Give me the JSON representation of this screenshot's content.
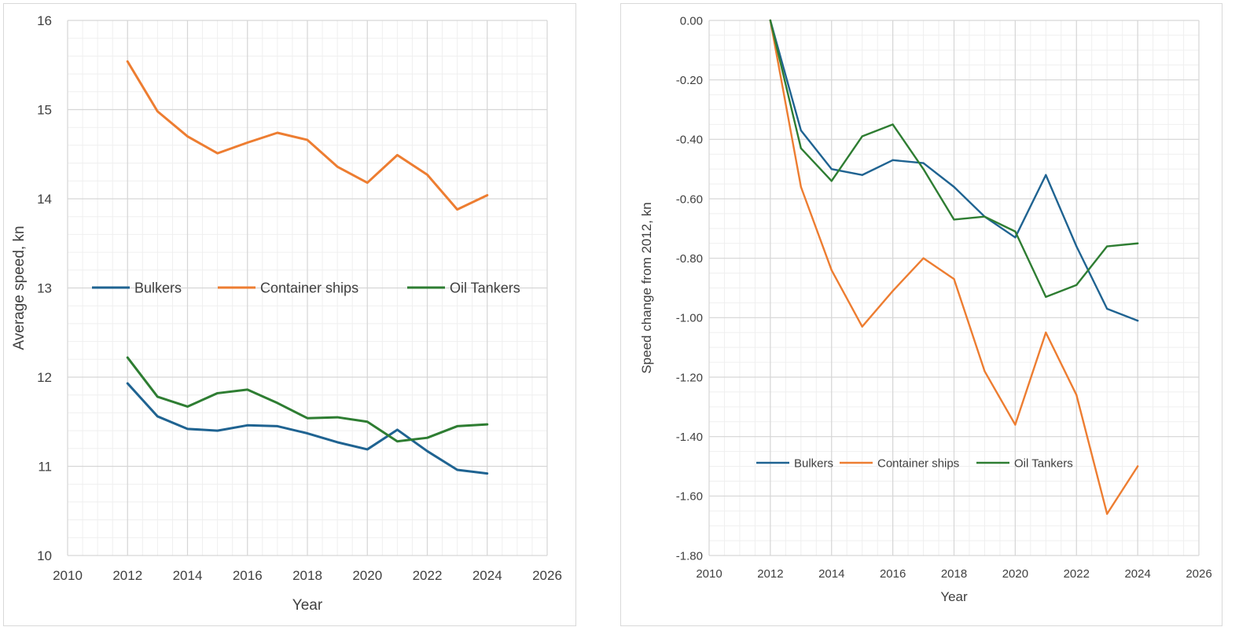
{
  "chart_data": [
    {
      "type": "line",
      "title": "",
      "xlabel": "Year",
      "ylabel": "Average speed, kn",
      "xlim": [
        2010,
        2026
      ],
      "ylim": [
        10,
        16
      ],
      "x_ticks": [
        "2010",
        "2012",
        "2014",
        "2016",
        "2018",
        "2020",
        "2022",
        "2024",
        "2026"
      ],
      "y_ticks": [
        "10",
        "11",
        "12",
        "13",
        "14",
        "15",
        "16"
      ],
      "grid": true,
      "legend_position": "center",
      "x": [
        2012,
        2013,
        2014,
        2015,
        2016,
        2017,
        2018,
        2019,
        2020,
        2021,
        2022,
        2023,
        2024
      ],
      "series": [
        {
          "name": "Bulkers",
          "color": "#1f6391",
          "values": [
            11.93,
            11.56,
            11.42,
            11.4,
            11.46,
            11.45,
            11.37,
            11.27,
            11.19,
            11.41,
            11.17,
            10.96,
            10.92
          ]
        },
        {
          "name": "Container ships",
          "color": "#ed7d31",
          "values": [
            15.54,
            14.98,
            14.7,
            14.51,
            14.63,
            14.74,
            14.66,
            14.36,
            14.18,
            14.49,
            14.27,
            13.88,
            14.04
          ]
        },
        {
          "name": "Oil Tankers",
          "color": "#2e7d32",
          "values": [
            12.22,
            11.78,
            11.67,
            11.82,
            11.86,
            11.71,
            11.54,
            11.55,
            11.5,
            11.28,
            11.32,
            11.45,
            11.47
          ]
        }
      ]
    },
    {
      "type": "line",
      "title": "",
      "xlabel": "Year",
      "ylabel": "Speed change from 2012, kn",
      "xlim": [
        2010,
        2026
      ],
      "ylim": [
        -1.8,
        0
      ],
      "x_ticks": [
        "2010",
        "2012",
        "2014",
        "2016",
        "2018",
        "2020",
        "2022",
        "2024",
        "2026"
      ],
      "y_ticks": [
        "0.00",
        "-0.20",
        "-0.40",
        "-0.60",
        "-0.80",
        "-1.00",
        "-1.20",
        "-1.40",
        "-1.60",
        "-1.80"
      ],
      "grid": true,
      "legend_position": "bottom",
      "x": [
        2012,
        2013,
        2014,
        2015,
        2016,
        2017,
        2018,
        2019,
        2020,
        2021,
        2022,
        2023,
        2024
      ],
      "series": [
        {
          "name": "Bulkers",
          "color": "#1f6391",
          "values": [
            0,
            -0.37,
            -0.5,
            -0.52,
            -0.47,
            -0.48,
            -0.56,
            -0.66,
            -0.73,
            -0.52,
            -0.76,
            -0.97,
            -1.01
          ]
        },
        {
          "name": "Container ships",
          "color": "#ed7d31",
          "values": [
            0,
            -0.56,
            -0.84,
            -1.03,
            -0.91,
            -0.8,
            -0.87,
            -1.18,
            -1.36,
            -1.05,
            -1.26,
            -1.66,
            -1.5
          ]
        },
        {
          "name": "Oil Tankers",
          "color": "#2e7d32",
          "values": [
            0,
            -0.43,
            -0.54,
            -0.39,
            -0.35,
            -0.5,
            -0.67,
            -0.66,
            -0.71,
            -0.93,
            -0.89,
            -0.76,
            -0.75
          ]
        }
      ]
    }
  ]
}
